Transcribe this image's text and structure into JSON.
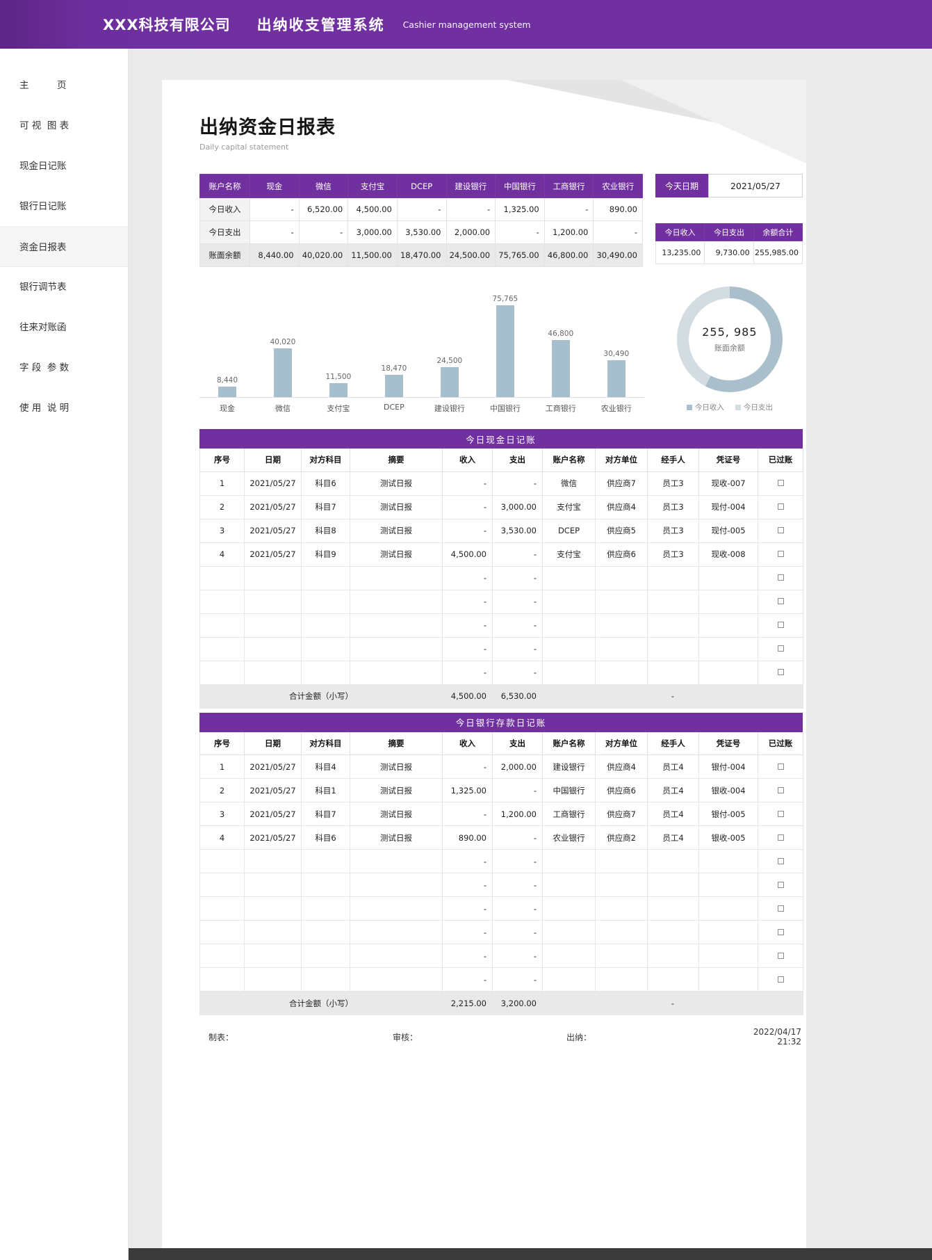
{
  "colors": {
    "accent_purple": "#7030a0",
    "bar_fill": "#a7becd",
    "donut_secondary": "#d3dce1"
  },
  "header": {
    "company": "XXX科技有限公司",
    "system_title": "出纳收支管理系统",
    "system_subtitle": "Cashier management system"
  },
  "sidebar": {
    "items": [
      {
        "label": "主　　　页",
        "active": false
      },
      {
        "label": "可 视  图 表",
        "active": false
      },
      {
        "label": "现金日记账",
        "active": false
      },
      {
        "label": "银行日记账",
        "active": false
      },
      {
        "label": "资金日报表",
        "active": true
      },
      {
        "label": "银行调节表",
        "active": false
      },
      {
        "label": "往来对账函",
        "active": false
      },
      {
        "label": "字 段  参 数",
        "active": false
      },
      {
        "label": "使 用  说 明",
        "active": false
      }
    ]
  },
  "page": {
    "title": "出纳资金日报表",
    "subtitle": "Daily capital statement"
  },
  "summary_table": {
    "header": [
      "账户名称",
      "现金",
      "微信",
      "支付宝",
      "DCEP",
      "建设银行",
      "中国银行",
      "工商银行",
      "农业银行"
    ],
    "rows": [
      {
        "label": "今日收入",
        "values": [
          "-",
          "6,520.00",
          "4,500.00",
          "-",
          "-",
          "1,325.00",
          "-",
          "890.00"
        ]
      },
      {
        "label": "今日支出",
        "values": [
          "-",
          "-",
          "3,000.00",
          "3,530.00",
          "2,000.00",
          "-",
          "1,200.00",
          "-"
        ]
      },
      {
        "label": "账面余额",
        "values": [
          "8,440.00",
          "40,020.00",
          "11,500.00",
          "18,470.00",
          "24,500.00",
          "75,765.00",
          "46,800.00",
          "30,490.00"
        ]
      }
    ]
  },
  "date_panel": {
    "label": "今天日期",
    "value": "2021/05/27"
  },
  "totals_panel": {
    "headers": [
      "今日收入",
      "今日支出",
      "余额合计"
    ],
    "values": [
      "13,235.00",
      "9,730.00",
      "255,985.00"
    ]
  },
  "chart_data": [
    {
      "type": "bar",
      "categories": [
        "现金",
        "微信",
        "支付宝",
        "DCEP",
        "建设银行",
        "中国银行",
        "工商银行",
        "农业银行"
      ],
      "values": [
        8440,
        40020,
        11500,
        18470,
        24500,
        75765,
        46800,
        30490
      ],
      "labels": [
        "8,440",
        "40,020",
        "11,500",
        "18,470",
        "24,500",
        "75,765",
        "46,800",
        "30,490"
      ],
      "title": "",
      "xlabel": "",
      "ylabel": "",
      "ylim": [
        0,
        75765
      ],
      "grid": false,
      "bar_color": "#a7becd"
    },
    {
      "type": "pie",
      "center_value": "255, 985",
      "center_label": "账面余额",
      "legend": [
        "今日收入",
        "今日支出"
      ],
      "values": [
        13235,
        9730
      ],
      "colors": [
        "#a9bfcb",
        "#d3dce1"
      ],
      "legend_position": "bottom"
    }
  ],
  "cash_table": {
    "banner": "今日现金日记账",
    "columns": [
      "序号",
      "日期",
      "对方科目",
      "摘要",
      "收入",
      "支出",
      "账户名称",
      "对方单位",
      "经手人",
      "凭证号",
      "已过账"
    ],
    "rows": [
      [
        "1",
        "2021/05/27",
        "科目6",
        "测试日报",
        "-",
        "-",
        "微信",
        "供应商7",
        "员工3",
        "现收-007"
      ],
      [
        "2",
        "2021/05/27",
        "科目7",
        "测试日报",
        "-",
        "3,000.00",
        "支付宝",
        "供应商4",
        "员工3",
        "现付-004"
      ],
      [
        "3",
        "2021/05/27",
        "科目8",
        "测试日报",
        "-",
        "3,530.00",
        "DCEP",
        "供应商5",
        "员工3",
        "现付-005"
      ],
      [
        "4",
        "2021/05/27",
        "科目9",
        "测试日报",
        "4,500.00",
        "-",
        "支付宝",
        "供应商6",
        "员工3",
        "现收-008"
      ],
      [
        "",
        "",
        "",
        "",
        "-",
        "-",
        "",
        "",
        "",
        ""
      ],
      [
        "",
        "",
        "",
        "",
        "-",
        "-",
        "",
        "",
        "",
        ""
      ],
      [
        "",
        "",
        "",
        "",
        "-",
        "-",
        "",
        "",
        "",
        ""
      ],
      [
        "",
        "",
        "",
        "",
        "-",
        "-",
        "",
        "",
        "",
        ""
      ],
      [
        "",
        "",
        "",
        "",
        "-",
        "-",
        "",
        "",
        "",
        ""
      ]
    ],
    "footer": {
      "label": "合计金额（小写）",
      "income": "4,500.00",
      "expense": "6,530.00",
      "rest": "-"
    }
  },
  "bank_table": {
    "banner": "今日银行存款日记账",
    "columns": [
      "序号",
      "日期",
      "对方科目",
      "摘要",
      "收入",
      "支出",
      "账户名称",
      "对方单位",
      "经手人",
      "凭证号",
      "已过账"
    ],
    "rows": [
      [
        "1",
        "2021/05/27",
        "科目4",
        "测试日报",
        "-",
        "2,000.00",
        "建设银行",
        "供应商4",
        "员工4",
        "银付-004"
      ],
      [
        "2",
        "2021/05/27",
        "科目1",
        "测试日报",
        "1,325.00",
        "-",
        "中国银行",
        "供应商6",
        "员工4",
        "银收-004"
      ],
      [
        "3",
        "2021/05/27",
        "科目7",
        "测试日报",
        "-",
        "1,200.00",
        "工商银行",
        "供应商7",
        "员工4",
        "银付-005"
      ],
      [
        "4",
        "2021/05/27",
        "科目6",
        "测试日报",
        "890.00",
        "-",
        "农业银行",
        "供应商2",
        "员工4",
        "银收-005"
      ],
      [
        "",
        "",
        "",
        "",
        "-",
        "-",
        "",
        "",
        "",
        ""
      ],
      [
        "",
        "",
        "",
        "",
        "-",
        "-",
        "",
        "",
        "",
        ""
      ],
      [
        "",
        "",
        "",
        "",
        "-",
        "-",
        "",
        "",
        "",
        ""
      ],
      [
        "",
        "",
        "",
        "",
        "-",
        "-",
        "",
        "",
        "",
        ""
      ],
      [
        "",
        "",
        "",
        "",
        "-",
        "-",
        "",
        "",
        "",
        ""
      ],
      [
        "",
        "",
        "",
        "",
        "-",
        "-",
        "",
        "",
        "",
        ""
      ]
    ],
    "footer": {
      "label": "合计金额（小写）",
      "income": "2,215.00",
      "expense": "3,200.00",
      "rest": "-"
    }
  },
  "footer_row": {
    "maker": "制表：",
    "auditor": "审核：",
    "cashier": "出纳：",
    "datetime": "2022/04/17 21:32"
  }
}
